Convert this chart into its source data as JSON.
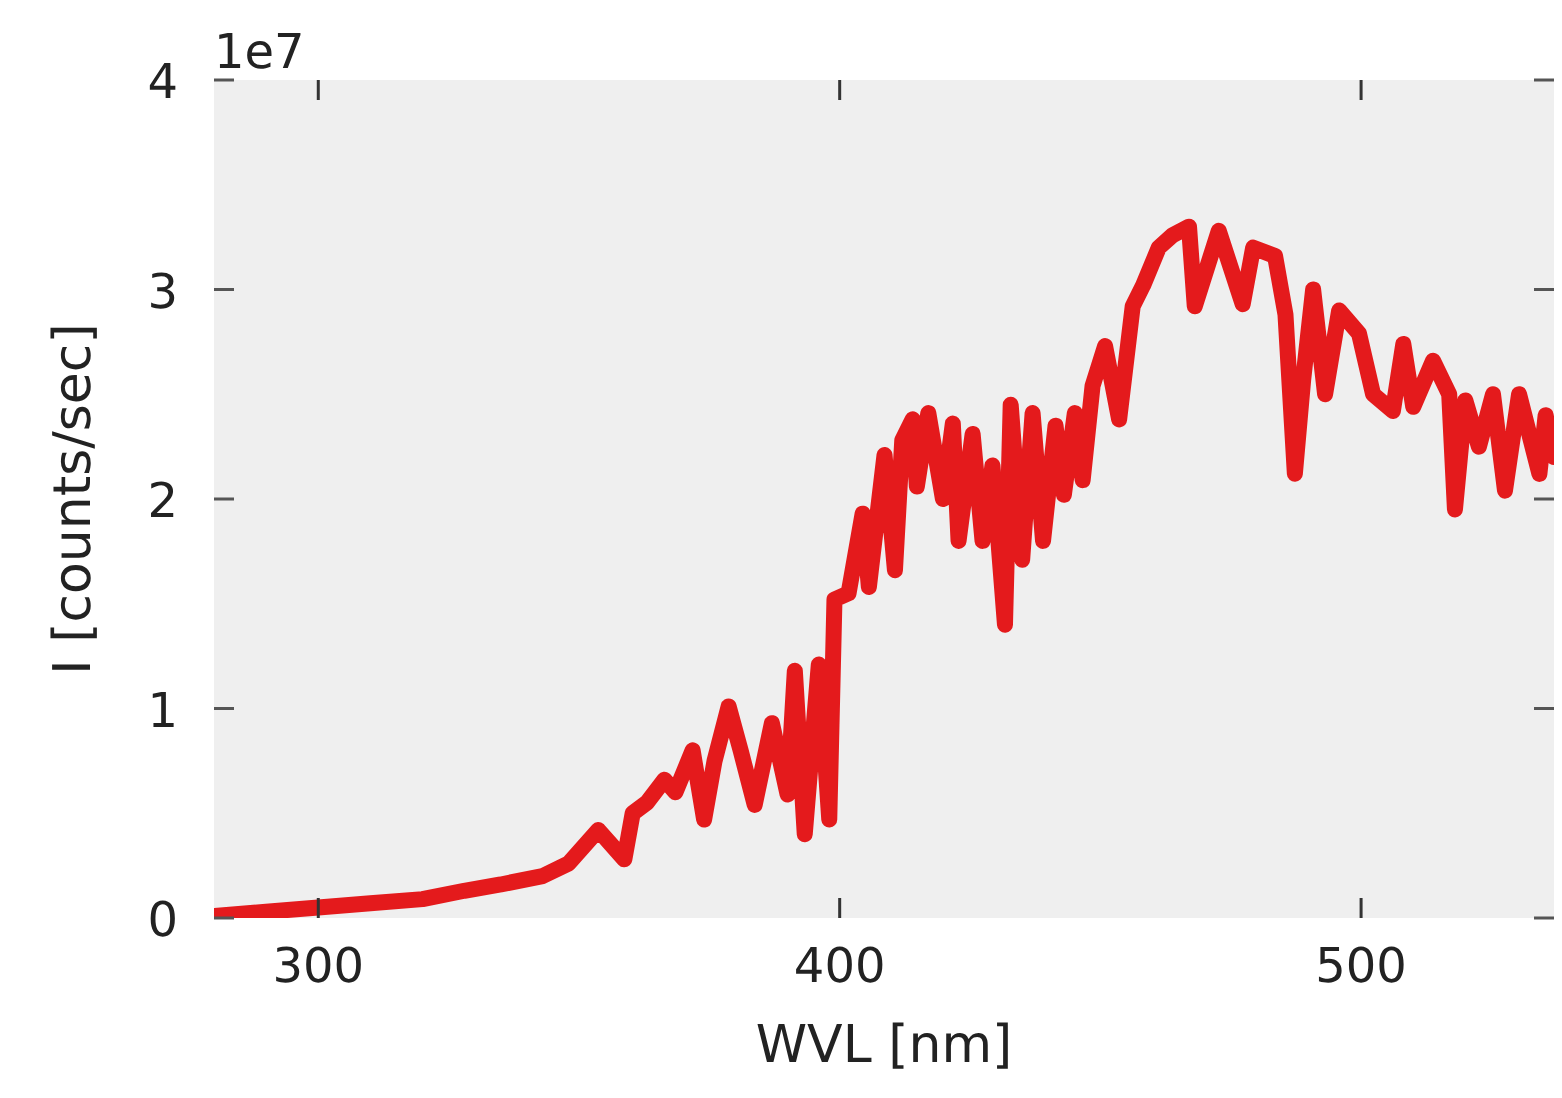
{
  "chart_data": {
    "type": "line",
    "xlabel": "WVL [nm]",
    "ylabel": "I [counts/sec]",
    "annotations": [
      "1e7"
    ],
    "xlim": [
      280,
      537
    ],
    "ylim": [
      0,
      4
    ],
    "xticks": [
      300,
      400,
      500
    ],
    "yticks": [
      0,
      1,
      2,
      3,
      4
    ],
    "grid": false,
    "line_style": "solid",
    "marker": "none",
    "series": [
      {
        "color": "#e41a1c",
        "x": [
          280,
          290,
          300,
          310,
          320,
          328,
          335,
          343,
          348,
          353.7,
          358.7,
          360.3,
          363,
          366.4,
          368.5,
          371.8,
          374,
          376,
          378.7,
          381,
          383.7,
          387,
          390,
          391.4,
          393.3,
          396,
          398,
          399,
          401.7,
          404.4,
          405.6,
          408.6,
          410.6,
          412,
          414,
          414.8,
          417,
          419.8,
          421.7,
          422.8,
          425.5,
          427.4,
          429.3,
          431.7,
          432.8,
          435,
          437,
          439,
          441.4,
          443,
          445.1,
          446.6,
          448.5,
          450.9,
          453.6,
          456.2,
          458.2,
          461.2,
          463.9,
          467,
          468.1,
          472.7,
          477.3,
          479.3,
          483.5,
          485.5,
          487.3,
          488.9,
          490.8,
          493.1,
          495.8,
          499.6,
          502.3,
          506.1,
          508.1,
          510,
          513.8,
          516.9,
          518,
          520,
          522.6,
          525.3,
          527.6,
          530.3,
          534.2,
          535.4,
          537
        ],
        "values": [
          0.01,
          0.03,
          0.05,
          0.07,
          0.09,
          0.13,
          0.16,
          0.2,
          0.26,
          0.42,
          0.28,
          0.5,
          0.55,
          0.66,
          0.6,
          0.8,
          0.47,
          0.75,
          1.01,
          0.8,
          0.54,
          0.93,
          0.59,
          1.18,
          0.4,
          1.21,
          0.47,
          1.52,
          1.55,
          1.93,
          1.58,
          2.21,
          1.66,
          2.28,
          2.38,
          2.06,
          2.41,
          2.0,
          2.36,
          1.8,
          2.31,
          1.8,
          2.16,
          1.4,
          2.45,
          1.71,
          2.41,
          1.8,
          2.35,
          2.02,
          2.41,
          2.09,
          2.54,
          2.73,
          2.38,
          2.92,
          3.02,
          3.2,
          3.26,
          3.3,
          2.92,
          3.28,
          2.93,
          3.2,
          3.16,
          2.88,
          2.12,
          2.57,
          3.0,
          2.5,
          2.9,
          2.79,
          2.5,
          2.42,
          2.74,
          2.44,
          2.66,
          2.5,
          1.95,
          2.47,
          2.25,
          2.5,
          2.04,
          2.5,
          2.12,
          2.4,
          2.2
        ]
      }
    ]
  }
}
